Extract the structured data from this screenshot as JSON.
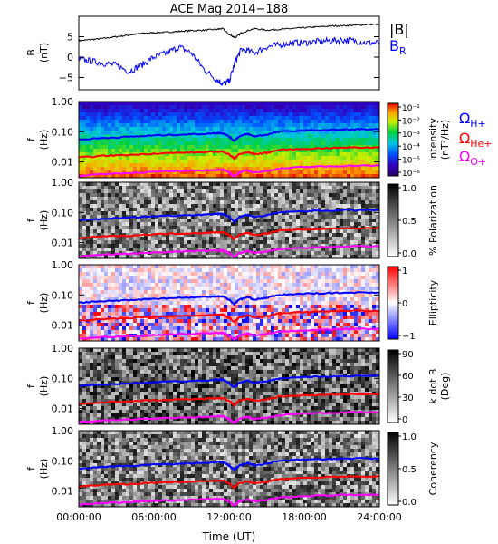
{
  "figure": {
    "title": "ACE Mag 2014−188",
    "xlabel": "Time (UT)",
    "x_ticks": [
      "00:00:00",
      "06:00:00",
      "12:00:00",
      "18:00:00",
      "24:00:00"
    ],
    "legend": {
      "h_symbol": "Ω",
      "h_sub": "H+",
      "h_color": "#0000ff",
      "he_symbol": "Ω",
      "he_sub": "He+",
      "he_color": "#ff0000",
      "o_symbol": "Ω",
      "o_sub": "O+",
      "o_color": "#ff00ff"
    },
    "panel1": {
      "ylabel": "B",
      "yunit": "(nT)",
      "y_ticks": [
        "5",
        "0",
        "−5"
      ],
      "legend_b": "|B|",
      "legend_br": "B",
      "legend_br_sub": "R",
      "b_color": "#000000",
      "br_color": "#0000ff"
    },
    "spec_ylabel": "f",
    "spec_yunit": "(Hz)",
    "spec_y_ticks": [
      "1.00",
      "0.10",
      "0.01"
    ],
    "panels": [
      {
        "id": "intensity",
        "colorbar_label": "Intensity",
        "colorbar_unit": "(nT²/Hz)",
        "colorbar_ticks": [
          "10⁻¹",
          "10⁻²",
          "10⁻³",
          "10⁻⁴",
          "10⁻⁵",
          "10⁻⁶"
        ]
      },
      {
        "id": "polarization",
        "colorbar_label": "% Polarization",
        "colorbar_unit": "",
        "colorbar_ticks": [
          "1.0",
          "0.5",
          "0.0"
        ]
      },
      {
        "id": "ellipticity",
        "colorbar_label": "Ellipticity",
        "colorbar_unit": "",
        "colorbar_ticks": [
          "1",
          "0",
          "−1"
        ]
      },
      {
        "id": "kdotb",
        "colorbar_label": "k dot B",
        "colorbar_unit": "(Deg)",
        "colorbar_ticks": [
          "90",
          "60",
          "30",
          "0"
        ]
      },
      {
        "id": "coherency",
        "colorbar_label": "Coherency",
        "colorbar_unit": "",
        "colorbar_ticks": [
          "1.0",
          "0.5",
          "0.0"
        ]
      }
    ]
  },
  "chart_data": {
    "type": "line",
    "title": "ACE Mag 2014−188",
    "xlabel": "Time (UT)",
    "x_range_hours": [
      0,
      24
    ],
    "time_series_panel": {
      "ylabel": "B (nT)",
      "ylim": [
        -8,
        10
      ],
      "x_hours": [
        0,
        1,
        2,
        3,
        4,
        5,
        6,
        7,
        8,
        9,
        10,
        11,
        11.5,
        12,
        12.5,
        13,
        14,
        15,
        16,
        17,
        18,
        19,
        20,
        21,
        22,
        23,
        24
      ],
      "series": [
        {
          "name": "|B|",
          "color": "#000000",
          "values": [
            4.0,
            4.3,
            4.6,
            5.0,
            5.4,
            5.8,
            6.0,
            6.1,
            6.3,
            6.5,
            6.6,
            6.8,
            7.0,
            5.5,
            4.8,
            6.0,
            7.0,
            6.6,
            6.8,
            7.0,
            7.2,
            7.4,
            7.6,
            7.7,
            7.8,
            8.0,
            8.0
          ]
        },
        {
          "name": "B",
          "color": "#0000ff",
          "values": [
            -0.5,
            -1.0,
            -1.5,
            -2.0,
            -3.5,
            -2.0,
            0.0,
            1.0,
            2.5,
            1.0,
            -3.0,
            -5.5,
            -6.5,
            -6.0,
            -1.0,
            2.0,
            1.0,
            2.5,
            3.0,
            3.5,
            3.5,
            3.8,
            4.0,
            4.2,
            4.0,
            3.5,
            3.5
          ]
        }
      ]
    },
    "spectrogram_panels": {
      "yscale": "log",
      "ylim_hz": [
        0.003,
        1.0
      ],
      "gyrofrequency_lines": {
        "x_hours": [
          0,
          2,
          4,
          6,
          8,
          10,
          11,
          11.5,
          12,
          12.4,
          12.8,
          13.5,
          14,
          15,
          16,
          18,
          20,
          22,
          24
        ],
        "series": [
          {
            "name": "ΩH+",
            "color": "#0000ff",
            "values": [
              0.055,
              0.062,
              0.068,
              0.075,
              0.08,
              0.085,
              0.09,
              0.09,
              0.07,
              0.05,
              0.07,
              0.085,
              0.07,
              0.08,
              0.1,
              0.11,
              0.115,
              0.12,
              0.12
            ]
          },
          {
            "name": "ΩHe+",
            "color": "#ff0000",
            "values": [
              0.014,
              0.016,
              0.017,
              0.019,
              0.02,
              0.021,
              0.022,
              0.022,
              0.018,
              0.013,
              0.018,
              0.021,
              0.018,
              0.02,
              0.025,
              0.027,
              0.029,
              0.03,
              0.03
            ]
          },
          {
            "name": "ΩO+",
            "color": "#ff00ff",
            "values": [
              0.0035,
              0.004,
              0.0043,
              0.0047,
              0.005,
              0.0053,
              0.0055,
              0.0055,
              0.0045,
              0.0033,
              0.0045,
              0.0053,
              0.0045,
              0.005,
              0.006,
              0.0068,
              0.0072,
              0.0075,
              0.0075
            ]
          }
        ]
      }
    }
  }
}
